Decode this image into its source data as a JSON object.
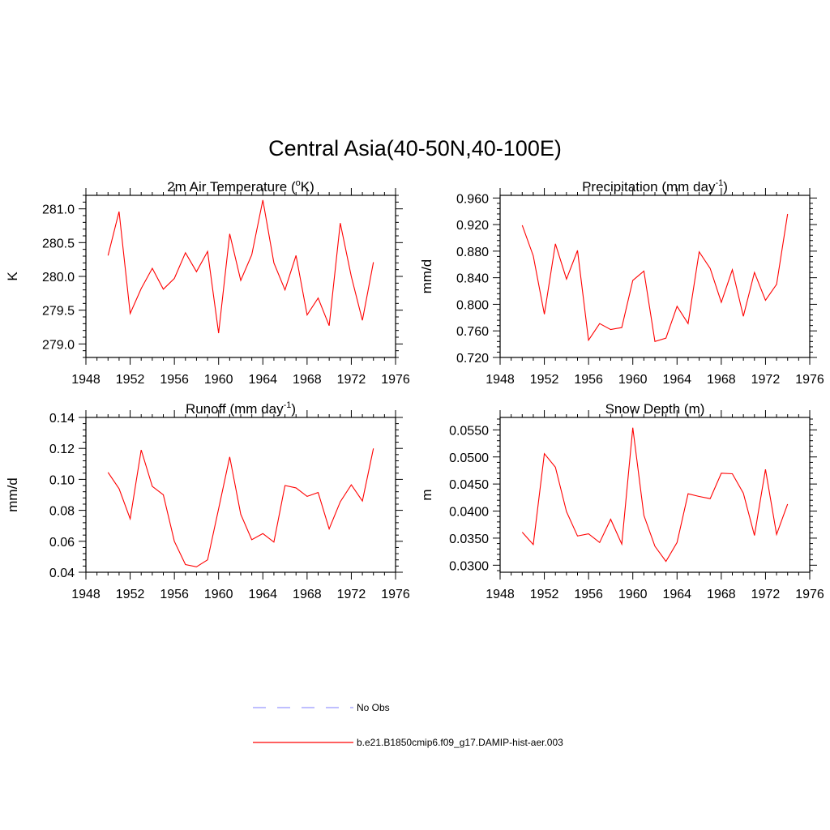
{
  "figure": {
    "title": "Central Asia(40-50N,40-100E)"
  },
  "chart_data": [
    {
      "type": "line",
      "title": "2m Air Temperature (",
      "title_sup": "o",
      "title_tail": "K)",
      "ylabel": "K",
      "xlim": [
        1948,
        1976
      ],
      "ylim": [
        278.8,
        281.2
      ],
      "x_ticks": [
        1948,
        1952,
        1956,
        1960,
        1964,
        1968,
        1972,
        1976
      ],
      "y_ticks": [
        "279.0",
        "279.5",
        "280.0",
        "280.5",
        "281.0"
      ],
      "grid": false,
      "series": [
        {
          "name": "b.e21.B1850cmip6.f09_g17.DAMIP-hist-aer.003",
          "color": "#ff0000",
          "x": [
            1950,
            1951,
            1952,
            1953,
            1954,
            1955,
            1956,
            1957,
            1958,
            1959,
            1960,
            1961,
            1962,
            1963,
            1964,
            1965,
            1966,
            1967,
            1968,
            1969,
            1970,
            1971,
            1972,
            1973,
            1974
          ],
          "values": [
            280.31,
            280.96,
            279.45,
            279.82,
            280.12,
            279.81,
            279.97,
            280.35,
            280.07,
            280.37,
            279.16,
            280.63,
            279.94,
            280.32,
            281.13,
            280.2,
            279.8,
            280.31,
            279.43,
            279.68,
            279.27,
            280.79,
            280.0,
            279.35,
            280.21
          ]
        }
      ]
    },
    {
      "type": "line",
      "title": "Precipitation (mm day",
      "title_sup": "-1",
      "title_tail": ")",
      "ylabel": "mm/d",
      "xlim": [
        1948,
        1976
      ],
      "ylim": [
        0.72,
        0.964
      ],
      "x_ticks": [
        1948,
        1952,
        1956,
        1960,
        1964,
        1968,
        1972,
        1976
      ],
      "y_ticks": [
        "0.720",
        "0.760",
        "0.800",
        "0.840",
        "0.880",
        "0.920",
        "0.960"
      ],
      "grid": false,
      "series": [
        {
          "name": "b.e21.B1850cmip6.f09_g17.DAMIP-hist-aer.003",
          "color": "#ff0000",
          "x": [
            1950,
            1951,
            1952,
            1953,
            1954,
            1955,
            1956,
            1957,
            1958,
            1959,
            1960,
            1961,
            1962,
            1963,
            1964,
            1965,
            1966,
            1967,
            1968,
            1969,
            1970,
            1971,
            1972,
            1973,
            1974
          ],
          "values": [
            0.919,
            0.873,
            0.785,
            0.891,
            0.838,
            0.881,
            0.746,
            0.771,
            0.762,
            0.765,
            0.836,
            0.85,
            0.744,
            0.749,
            0.797,
            0.771,
            0.879,
            0.854,
            0.803,
            0.852,
            0.782,
            0.848,
            0.806,
            0.83,
            0.936
          ]
        }
      ]
    },
    {
      "type": "line",
      "title": "Runoff (mm day",
      "title_sup": "-1",
      "title_tail": ")",
      "ylabel": "mm/d",
      "xlim": [
        1948,
        1976
      ],
      "ylim": [
        0.04,
        0.14
      ],
      "x_ticks": [
        1948,
        1952,
        1956,
        1960,
        1964,
        1968,
        1972,
        1976
      ],
      "y_ticks": [
        "0.04",
        "0.06",
        "0.08",
        "0.10",
        "0.12",
        "0.14"
      ],
      "grid": false,
      "series": [
        {
          "name": "b.e21.B1850cmip6.f09_g17.DAMIP-hist-aer.003",
          "color": "#ff0000",
          "x": [
            1950,
            1951,
            1952,
            1953,
            1954,
            1955,
            1956,
            1957,
            1958,
            1959,
            1960,
            1961,
            1962,
            1963,
            1964,
            1965,
            1966,
            1967,
            1968,
            1969,
            1970,
            1971,
            1972,
            1973,
            1974
          ],
          "values": [
            0.1045,
            0.094,
            0.0745,
            0.119,
            0.0955,
            0.09,
            0.06,
            0.045,
            0.0435,
            0.048,
            0.081,
            0.1145,
            0.0775,
            0.061,
            0.065,
            0.0595,
            0.096,
            0.0945,
            0.089,
            0.0915,
            0.068,
            0.0855,
            0.0965,
            0.086,
            0.12
          ]
        }
      ]
    },
    {
      "type": "line",
      "title": "Snow Depth (m)",
      "title_sup": "",
      "title_tail": "",
      "ylabel": "m",
      "xlim": [
        1948,
        1976
      ],
      "ylim": [
        0.0287,
        0.0573
      ],
      "x_ticks": [
        1948,
        1952,
        1956,
        1960,
        1964,
        1968,
        1972,
        1976
      ],
      "y_ticks": [
        "0.0300",
        "0.0350",
        "0.0400",
        "0.0450",
        "0.0500",
        "0.0550"
      ],
      "grid": false,
      "series": [
        {
          "name": "b.e21.B1850cmip6.f09_g17.DAMIP-hist-aer.003",
          "color": "#ff0000",
          "x": [
            1950,
            1951,
            1952,
            1953,
            1954,
            1955,
            1956,
            1957,
            1958,
            1959,
            1960,
            1961,
            1962,
            1963,
            1964,
            1965,
            1966,
            1967,
            1968,
            1969,
            1970,
            1971,
            1972,
            1973,
            1974
          ],
          "values": [
            0.0361,
            0.0338,
            0.0506,
            0.0481,
            0.0399,
            0.0354,
            0.0358,
            0.0342,
            0.0385,
            0.0339,
            0.0554,
            0.0392,
            0.0335,
            0.0307,
            0.0342,
            0.0432,
            0.0427,
            0.0423,
            0.047,
            0.0469,
            0.0433,
            0.0355,
            0.0477,
            0.0357,
            0.0413
          ]
        }
      ]
    }
  ],
  "legend": {
    "placement": "bottom-center",
    "items": [
      {
        "label": "No Obs",
        "color": "#9999ff",
        "style": "dashed"
      },
      {
        "label": "b.e21.B1850cmip6.f09_g17.DAMIP-hist-aer.003",
        "color": "#ff0000",
        "style": "solid"
      }
    ]
  }
}
